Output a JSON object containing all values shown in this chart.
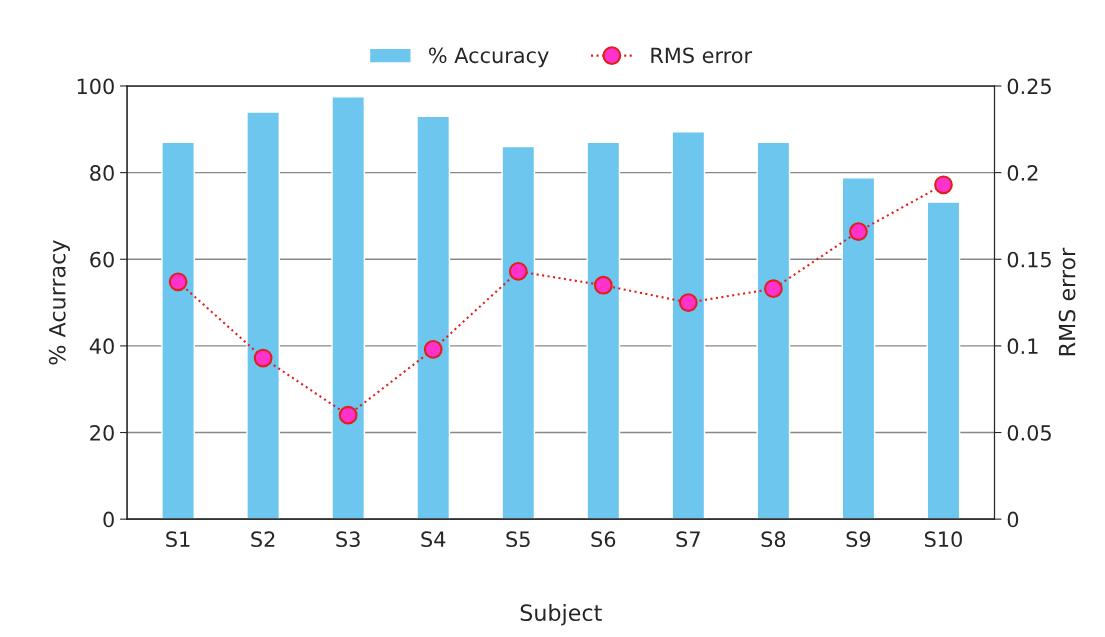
{
  "chart_data": {
    "type": "bar",
    "xlabel": "Subject",
    "ylabel": "% Acurracy",
    "y2label": "RMS error",
    "categories": [
      "S1",
      "S2",
      "S3",
      "S4",
      "S5",
      "S6",
      "S7",
      "S8",
      "S9",
      "S10"
    ],
    "series": [
      {
        "name": "% Accuracy",
        "color": "#6cc6ee",
        "values": [
          87,
          94,
          97.5,
          93,
          86,
          87,
          89.4,
          87,
          78.8,
          73.2
        ]
      },
      {
        "name": "RMS error",
        "type": "line",
        "axis": "y2",
        "color": "#ff33cc",
        "marker": "circle",
        "line_style": "dotted",
        "values": [
          0.137,
          0.093,
          0.06,
          0.098,
          0.143,
          0.135,
          0.125,
          0.133,
          0.166,
          0.193
        ]
      }
    ],
    "ylim": [
      0,
      100
    ],
    "yticks": [
      0,
      20,
      40,
      60,
      80,
      100
    ],
    "y2lim": [
      0,
      0.25
    ],
    "y2ticks": [
      0,
      0.05,
      0.1,
      0.15,
      0.2,
      0.25
    ],
    "grid": "y",
    "legend": "top"
  }
}
